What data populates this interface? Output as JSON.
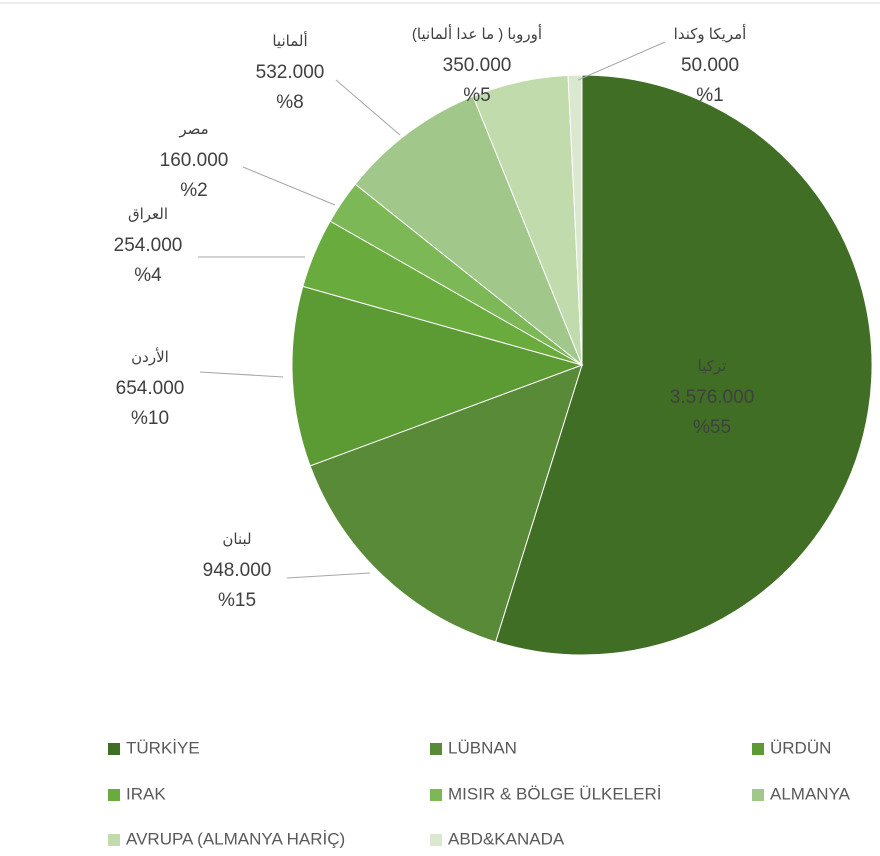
{
  "chart_data": {
    "type": "pie",
    "categories": [
      "TÜRKİYE",
      "LÜBNAN",
      "ÜRDÜN",
      "IRAK",
      "MISIR & BÖLGE ÜLKELERİ",
      "ALMANYA",
      "AVRUPA (ALMANYA HARİÇ)",
      "ABD&KANADA"
    ],
    "label_names": [
      "تركيا",
      "لبنان",
      "الأردن",
      "العراق",
      "مصر",
      "ألمانيا",
      "أوروبا ( ما عدا ألمانيا)",
      "أمريكا وكندا"
    ],
    "values": [
      3576000,
      948000,
      654000,
      254000,
      160000,
      532000,
      350000,
      50000
    ],
    "value_labels": [
      "3.576.000",
      "948.000",
      "654.000",
      "254.000",
      "160.000",
      "532.000",
      "350.000",
      "50.000"
    ],
    "percents": [
      55,
      15,
      10,
      4,
      2,
      8,
      5,
      1
    ],
    "percent_labels": [
      "%55",
      "%15",
      "%10",
      "%4",
      "%2",
      "%8",
      "%5",
      "%1"
    ],
    "colors": [
      "#3f6e24",
      "#588a37",
      "#5c9a33",
      "#69ab3d",
      "#7db857",
      "#a2c78a",
      "#c1dbad",
      "#dbe8d0"
    ],
    "legend": "bottom"
  }
}
